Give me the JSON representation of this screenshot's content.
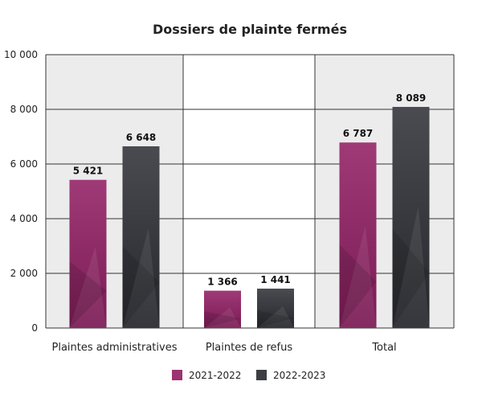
{
  "chart_data": {
    "type": "bar",
    "title": "Dossiers de plainte fermés",
    "categories": [
      "Plaintes administratives",
      "Plaintes de refus",
      "Total"
    ],
    "series": [
      {
        "name": "2021-2022",
        "values": [
          5421,
          1366,
          6787
        ],
        "labels": [
          "5 421",
          "1 366",
          "6 787"
        ],
        "color": "#9b3470"
      },
      {
        "name": "2022-2023",
        "values": [
          6648,
          1441,
          8089
        ],
        "labels": [
          "6 648",
          "1 441",
          "8 089"
        ],
        "color": "#3d3e43"
      }
    ],
    "ylim": [
      0,
      10000
    ],
    "yticks": [
      0,
      2000,
      4000,
      6000,
      8000,
      10000
    ],
    "ytick_labels": [
      "0",
      "2 000",
      "4 000",
      "6 000",
      "8 000",
      "10 000"
    ],
    "xlabel": "",
    "ylabel": "",
    "grid": true,
    "legend": "bottom-center",
    "panel_shading": [
      "#ececec",
      "#ffffff",
      "#ececec"
    ]
  }
}
